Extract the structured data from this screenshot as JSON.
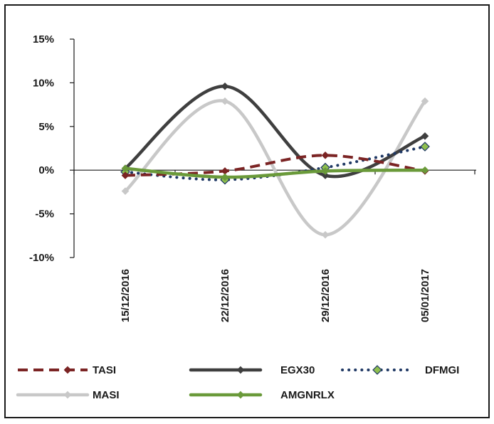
{
  "chart_data": {
    "type": "line",
    "categories": [
      "15/12/2016",
      "22/12/2016",
      "29/12/2016",
      "05/01/2017"
    ],
    "yticks": [
      "15%",
      "10%",
      "5%",
      "0%",
      "-5%",
      "-10%"
    ],
    "ylim": [
      -10,
      15
    ],
    "grid": false,
    "legend_position": "bottom",
    "series": [
      {
        "name": "TASI",
        "values": [
          -0.6,
          -0.1,
          1.7,
          -0.1
        ],
        "color": "#7b2424",
        "style": "dashed",
        "marker": "diamond"
      },
      {
        "name": "EGX30",
        "values": [
          0.2,
          9.6,
          -0.6,
          3.9
        ],
        "color": "#3f3f3f",
        "style": "solid",
        "marker": "diamond"
      },
      {
        "name": "DFMGI",
        "values": [
          -0.2,
          -1.1,
          0.3,
          2.7
        ],
        "color": "#1f3864",
        "style": "dotted",
        "marker": "diamond-green"
      },
      {
        "name": "MASI",
        "values": [
          -2.4,
          7.9,
          -7.4,
          7.9
        ],
        "color": "#c8c8c8",
        "style": "solid",
        "marker": "diamond"
      },
      {
        "name": "AMGNRLX",
        "values": [
          0.2,
          -0.8,
          -0.1,
          0.0
        ],
        "color": "#6a9a3a",
        "style": "solid",
        "marker": "diamond"
      }
    ]
  }
}
